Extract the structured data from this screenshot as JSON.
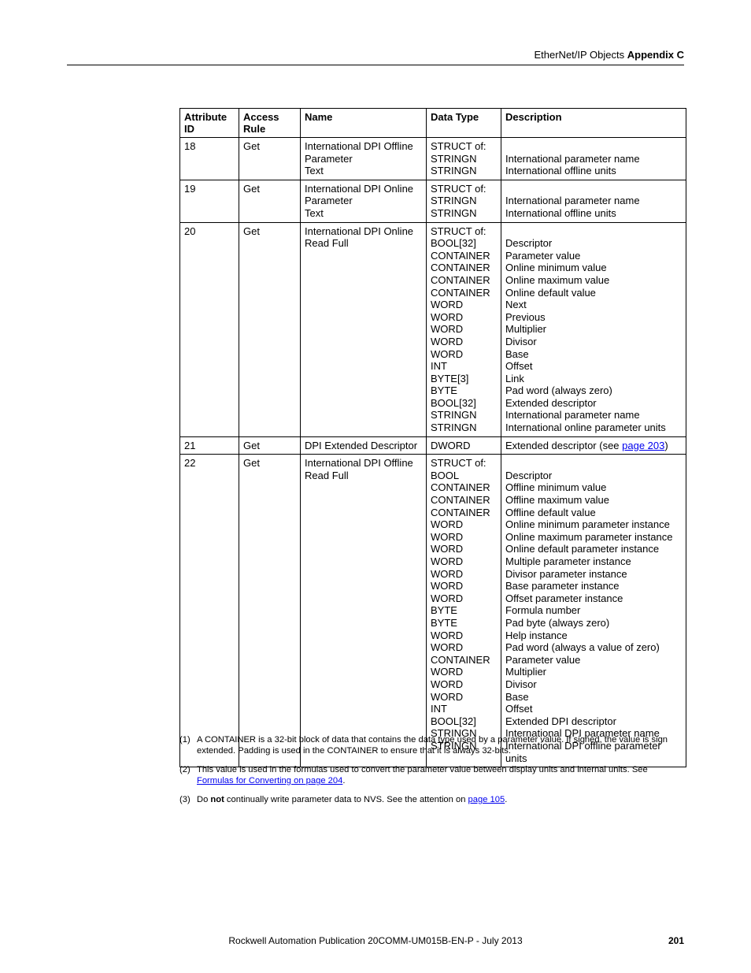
{
  "header": {
    "left_text": "EtherNet/IP Objects",
    "right_text": "Appendix C"
  },
  "table": {
    "columns": [
      "Attribute ID",
      "Access Rule",
      "Name",
      "Data Type",
      "Description"
    ],
    "rows": [
      {
        "attr": "18",
        "access": "Get",
        "name": [
          "International DPI Offline Parameter",
          "Text"
        ],
        "dtype": [
          "STRUCT of:",
          "STRINGN",
          "STRINGN"
        ],
        "desc": [
          "",
          "International parameter name",
          "International offline units"
        ]
      },
      {
        "attr": "19",
        "access": "Get",
        "name": [
          "International DPI Online Parameter",
          "Text"
        ],
        "dtype": [
          "STRUCT of:",
          "STRINGN",
          "STRINGN"
        ],
        "desc": [
          "",
          "International parameter name",
          "International offline units"
        ]
      },
      {
        "attr": "20",
        "access": "Get",
        "name": [
          "International DPI Online Read Full"
        ],
        "dtype": [
          "STRUCT of:",
          "BOOL[32]",
          "CONTAINER",
          "CONTAINER",
          "CONTAINER",
          "CONTAINER",
          "WORD",
          "WORD",
          "WORD",
          "WORD",
          "WORD",
          "INT",
          "BYTE[3]",
          "BYTE",
          "BOOL[32]",
          "STRINGN",
          "STRINGN"
        ],
        "desc": [
          "",
          "Descriptor",
          "Parameter value",
          "Online minimum value",
          "Online maximum value",
          "Online default value",
          "Next",
          "Previous",
          "Multiplier",
          "Divisor",
          "Base",
          "Offset",
          "Link",
          "Pad word (always zero)",
          "Extended descriptor",
          "International parameter name",
          "International online parameter units"
        ]
      },
      {
        "attr": "21",
        "access": "Get",
        "name": [
          "DPI Extended Descriptor"
        ],
        "dtype": [
          "DWORD"
        ],
        "desc_html": "Extended descriptor (see <span class=\"link\">page 203</span>)"
      },
      {
        "attr": "22",
        "access": "Get",
        "name": [
          "International DPI Offline Read Full"
        ],
        "dtype": [
          "STRUCT of:",
          "BOOL",
          "CONTAINER",
          "CONTAINER",
          "CONTAINER",
          "WORD",
          "WORD",
          "WORD",
          "WORD",
          "WORD",
          "WORD",
          "WORD",
          "BYTE",
          "BYTE",
          "WORD",
          "WORD",
          "CONTAINER",
          "WORD",
          "WORD",
          "WORD",
          "INT",
          "BOOL[32]",
          "STRINGN",
          "STRINGN"
        ],
        "desc": [
          "",
          "Descriptor",
          "Offline minimum value",
          "Offline maximum value",
          "Offline default value",
          "Online minimum parameter instance",
          "Online maximum parameter instance",
          "Online default parameter instance",
          "Multiple parameter instance",
          "Divisor parameter instance",
          "Base parameter instance",
          "Offset parameter instance",
          "Formula number",
          "Pad byte (always zero)",
          "Help instance",
          "Pad word (always a value of zero)",
          "Parameter value",
          "Multiplier",
          "Divisor",
          "Base",
          "Offset",
          "Extended DPI descriptor",
          "International DPI parameter name",
          "International DPI offline parameter units"
        ]
      }
    ]
  },
  "footnotes": [
    {
      "num": "(1)",
      "html": "A CONTAINER is a 32-bit block of data that contains the data type used by a parameter value. If signed, the value is sign extended. Padding is used in the CONTAINER to ensure that it is always 32-bits."
    },
    {
      "num": "(2)",
      "html": "This value is used in the formulas used to convert the parameter value between display units and internal units. See <span class=\"link\">Formulas for Converting on page 204</span>."
    },
    {
      "num": "(3)",
      "html": "Do <span class=\"bold\">not</span> continually write parameter data to NVS. See the attention on <span class=\"link\">page 105</span>."
    }
  ],
  "footer": {
    "text": "Rockwell Automation Publication  20COMM-UM015B-EN-P - July 2013",
    "page": "201"
  }
}
